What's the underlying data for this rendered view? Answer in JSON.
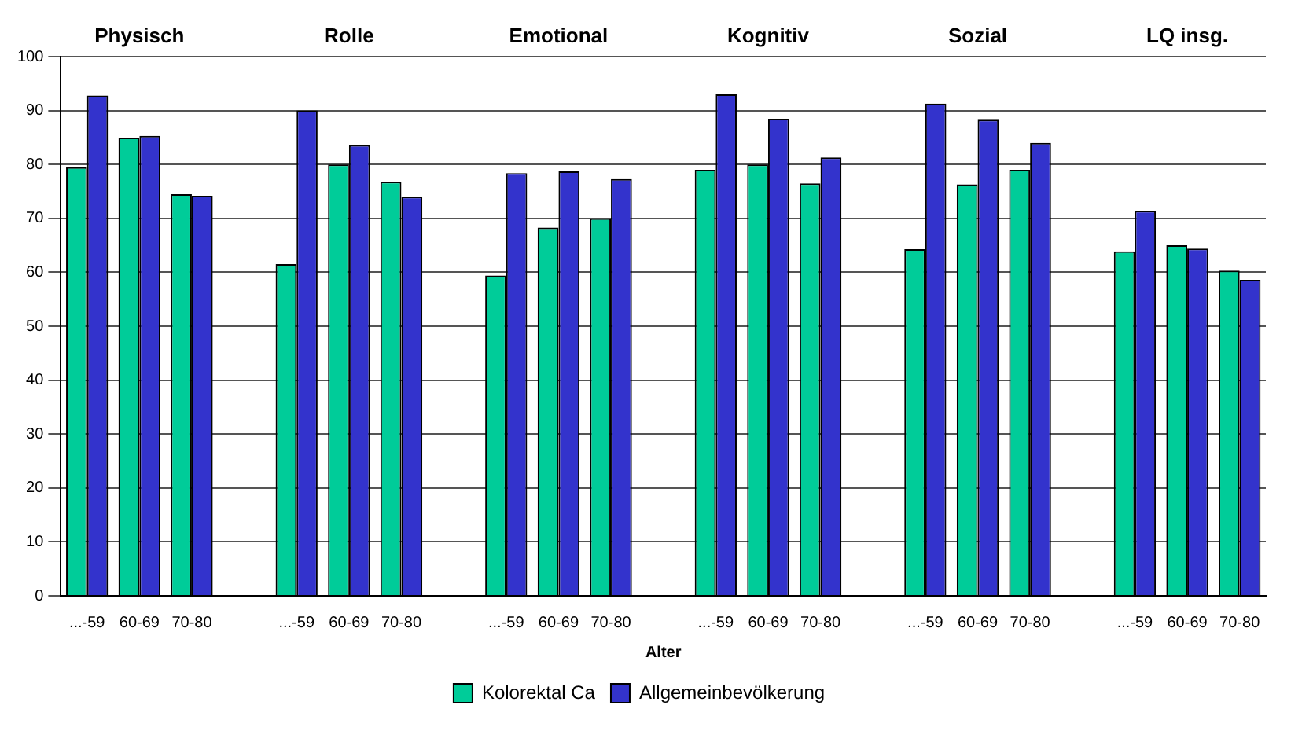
{
  "chart_data": {
    "type": "bar",
    "xlabel": "Alter",
    "categories": [
      "...-59",
      "60-69",
      "70-80",
      null,
      "...-59",
      "60-69",
      "70-80",
      null,
      "...-59",
      "60-69",
      "70-80",
      null,
      "...-59",
      "60-69",
      "70-80",
      null,
      "...-59",
      "60-69",
      "70-80",
      null,
      "...-59",
      "60-69",
      "70-80"
    ],
    "series": [
      {
        "name": "Kolorektal Ca",
        "color": "#00cc99",
        "values": [
          79.5,
          85,
          74.5,
          null,
          61.5,
          80,
          76.8,
          null,
          59.4,
          68.3,
          70,
          null,
          79,
          80,
          76.5,
          null,
          64.3,
          76.3,
          79,
          null,
          63.9,
          65,
          60.3
        ]
      },
      {
        "name": "Allgemeinbevölkerung",
        "color": "#3333cc",
        "values": [
          92.8,
          85.3,
          74.2,
          null,
          90,
          83.6,
          74,
          null,
          78.4,
          78.7,
          77.3,
          null,
          93,
          88.5,
          81.3,
          null,
          91.3,
          88.3,
          84,
          null,
          71.4,
          64.4,
          58.6
        ]
      }
    ],
    "annotations": [
      "Physisch",
      "Rolle",
      "Emotional",
      "Kognitiv",
      "Sozial",
      "LQ insg."
    ],
    "ylim": [
      0,
      100
    ],
    "yticks": [
      0,
      10,
      20,
      30,
      40,
      50,
      60,
      70,
      80,
      90,
      100
    ],
    "grid": "y",
    "legend": "bottom"
  }
}
